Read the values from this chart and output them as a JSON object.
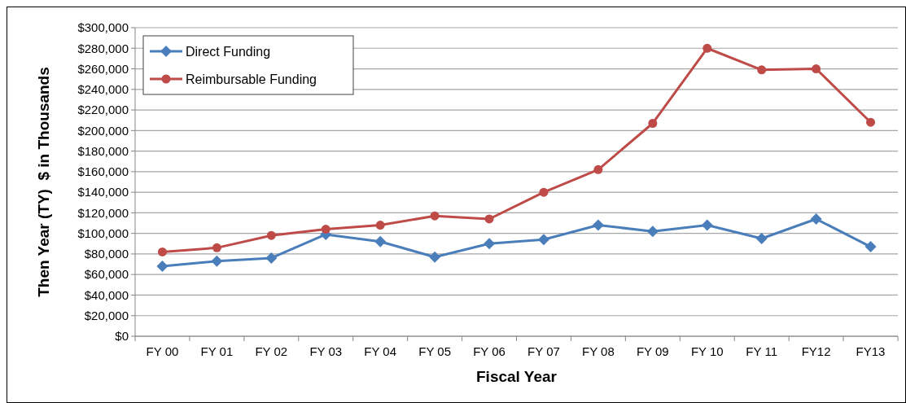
{
  "chart_data": {
    "type": "line",
    "xlabel": "Fiscal Year",
    "ylabel": "Then Year (TY)  $ in Thousands",
    "categories": [
      "FY 00",
      "FY 01",
      "FY 02",
      "FY 03",
      "FY 04",
      "FY 05",
      "FY 06",
      "FY 07",
      "FY 08",
      "FY 09",
      "FY 10",
      "FY 11",
      "FY12",
      "FY13"
    ],
    "series": [
      {
        "name": "Direct Funding",
        "color": "#4a7ebb",
        "marker": "diamond",
        "values": [
          68000,
          73000,
          76000,
          99000,
          92000,
          77000,
          90000,
          94000,
          108000,
          102000,
          108000,
          95000,
          114000,
          87000
        ]
      },
      {
        "name": "Reimbursable Funding",
        "color": "#be4b48",
        "marker": "circle",
        "values": [
          82000,
          86000,
          98000,
          104000,
          108000,
          117000,
          114000,
          140000,
          162000,
          207000,
          280000,
          259000,
          260000,
          208000
        ]
      }
    ],
    "ylim": [
      0,
      300000
    ],
    "yticks": [
      {
        "value": 0,
        "label": "$0"
      },
      {
        "value": 20000,
        "label": "$20,000"
      },
      {
        "value": 40000,
        "label": "$40,000"
      },
      {
        "value": 60000,
        "label": "$60,000"
      },
      {
        "value": 80000,
        "label": "$80,000"
      },
      {
        "value": 100000,
        "label": "$100,000"
      },
      {
        "value": 120000,
        "label": "$120,000"
      },
      {
        "value": 140000,
        "label": "$140,000"
      },
      {
        "value": 160000,
        "label": "$160,000"
      },
      {
        "value": 180000,
        "label": "$180,000"
      },
      {
        "value": 200000,
        "label": "$200,000"
      },
      {
        "value": 220000,
        "label": "$220,000"
      },
      {
        "value": 240000,
        "label": "$240,000"
      },
      {
        "value": 260000,
        "label": "$260,000"
      },
      {
        "value": 280000,
        "label": "$280,000"
      },
      {
        "value": 300000,
        "label": "$300,000"
      }
    ],
    "grid": "y",
    "legend": "top left"
  }
}
